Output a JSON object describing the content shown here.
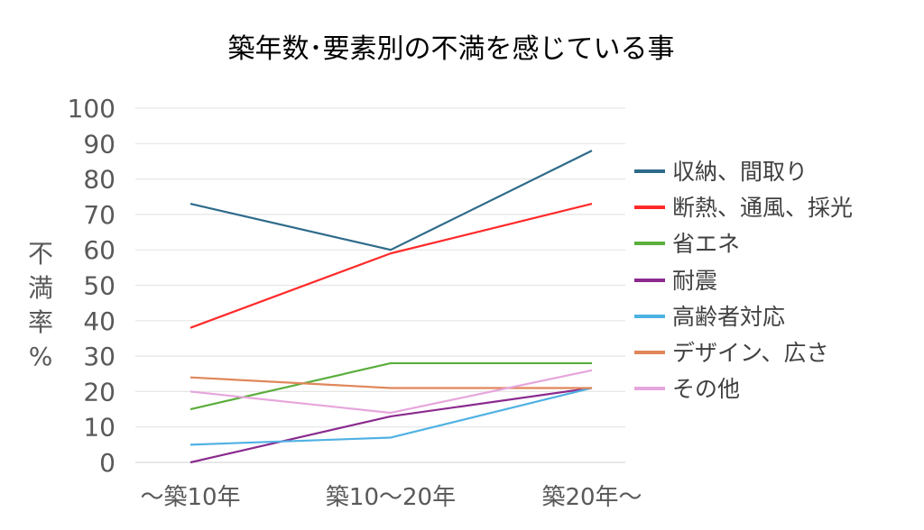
{
  "chart_data": {
    "type": "line",
    "title": "築年数･要素別の不満を感じている事",
    "ylabel_chars": [
      "不",
      "満",
      "率",
      "%"
    ],
    "ylim": [
      0,
      100
    ],
    "yticks": [
      0,
      10,
      20,
      30,
      40,
      50,
      60,
      70,
      80,
      90,
      100
    ],
    "categories": [
      "～築10年",
      "築10～20年",
      "築20年～"
    ],
    "grid": true,
    "legend_position": "right",
    "series": [
      {
        "name": "収納、間取り",
        "color": "#2E6B8A",
        "values": [
          73,
          60,
          88
        ]
      },
      {
        "name": "断熱、通風、採光",
        "color": "#FF2A2A",
        "values": [
          38,
          59,
          73
        ]
      },
      {
        "name": "省エネ",
        "color": "#5AAE3C",
        "values": [
          15,
          28,
          28
        ]
      },
      {
        "name": "耐震",
        "color": "#8B2A8E",
        "values": [
          0,
          13,
          21
        ]
      },
      {
        "name": "高齢者対応",
        "color": "#4FB1E3",
        "values": [
          5,
          7,
          21
        ]
      },
      {
        "name": "デザイン、広さ",
        "color": "#E0875A",
        "values": [
          24,
          21,
          21
        ]
      },
      {
        "name": "その他",
        "color": "#E6A6DC",
        "values": [
          20,
          14,
          26
        ]
      }
    ]
  }
}
